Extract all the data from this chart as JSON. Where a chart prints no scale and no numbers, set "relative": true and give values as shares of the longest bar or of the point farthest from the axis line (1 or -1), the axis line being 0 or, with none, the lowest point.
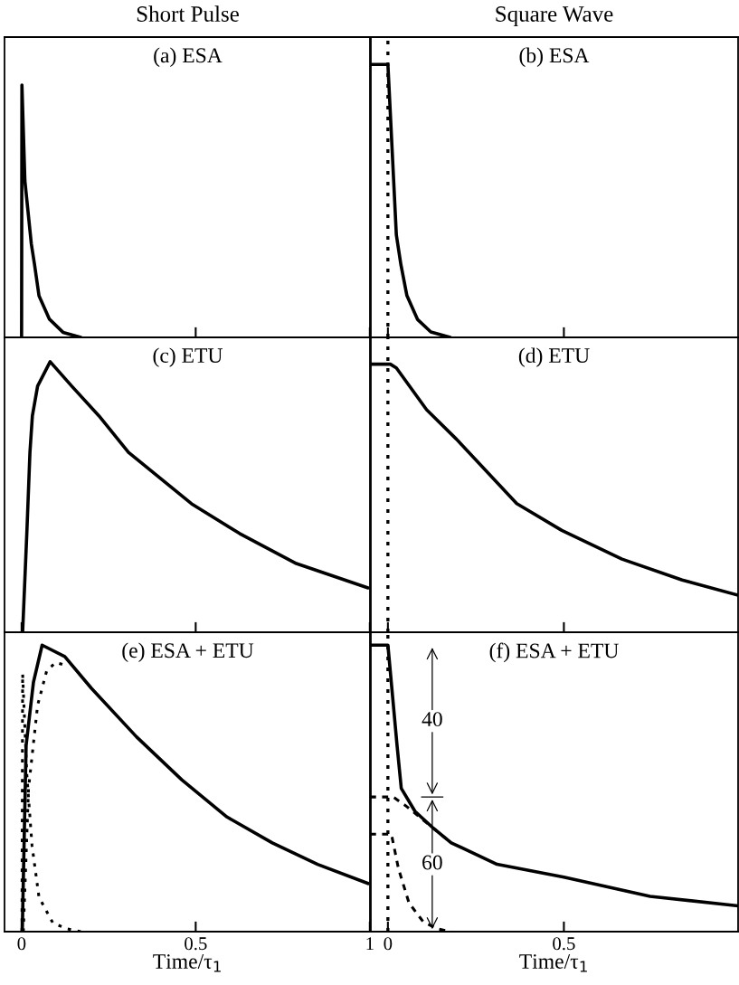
{
  "chart_data": [
    {
      "type": "line",
      "title": "(a) ESA",
      "annotations": [
        "Short Pulse"
      ],
      "relative": true,
      "xlim": [
        -0.049,
        1.003
      ],
      "xticks": [
        0,
        0.5,
        1
      ],
      "tick_labels": false,
      "series": [
        {
          "color": "#000000",
          "line_style": "solid",
          "x": [
            0,
            0.001,
            0.0095,
            0.028,
            0.037,
            0.05,
            0.08,
            0.119,
            0.17
          ],
          "values": [
            0,
            1,
            0.62,
            0.37,
            0.29,
            0.165,
            0.072,
            0.02,
            0
          ]
        }
      ]
    },
    {
      "type": "line",
      "title": "(b) ESA",
      "annotations": [
        "Square Wave"
      ],
      "relative": true,
      "xlim": [
        -0.051,
        0.995
      ],
      "xticks": [
        0,
        0.5
      ],
      "tick_labels": false,
      "ref_lines": [
        {
          "axis": "x",
          "value": 0,
          "label": null,
          "color": "#000000",
          "line_style": "dotted"
        }
      ],
      "series": [
        {
          "color": "#000000",
          "line_style": "solid",
          "x": [
            -0.051,
            0,
            0.024,
            0.037,
            0.054,
            0.084,
            0.122,
            0.177
          ],
          "values": [
            1,
            1,
            0.375,
            0.266,
            0.153,
            0.066,
            0.02,
            0
          ]
        }
      ]
    },
    {
      "type": "line",
      "title": "(c) ETU",
      "relative": true,
      "xlim": [
        -0.049,
        1.003
      ],
      "xticks": [
        0,
        0.5,
        1
      ],
      "tick_labels": false,
      "series": [
        {
          "color": "#000000",
          "line_style": "solid",
          "x": [
            0.003,
            0.015,
            0.024,
            0.031,
            0.046,
            0.082,
            0.144,
            0.222,
            0.307,
            0.488,
            0.626,
            0.789,
            0.995
          ],
          "values": [
            0,
            0.365,
            0.665,
            0.8,
            0.91,
            1,
            0.91,
            0.8,
            0.665,
            0.475,
            0.365,
            0.254,
            0.164
          ]
        }
      ]
    },
    {
      "type": "line",
      "title": "(d) ETU",
      "relative": true,
      "xlim": [
        -0.051,
        0.995
      ],
      "xticks": [
        0,
        0.5
      ],
      "tick_labels": false,
      "ref_lines": [
        {
          "axis": "x",
          "value": 0,
          "label": null,
          "color": "#000000",
          "line_style": "dotted"
        }
      ],
      "series": [
        {
          "color": "#000000",
          "line_style": "solid",
          "x": [
            -0.051,
            0.007,
            0.024,
            0.11,
            0.195,
            0.366,
            0.494,
            0.665,
            0.836,
            0.995
          ],
          "values": [
            1,
            1,
            0.986,
            0.83,
            0.72,
            0.48,
            0.38,
            0.273,
            0.195,
            0.138
          ]
        }
      ]
    },
    {
      "type": "line",
      "title": "(e) ESA + ETU",
      "xlabel": "Time/τ$_{1}$",
      "relative": true,
      "xlim": [
        -0.049,
        1.003
      ],
      "xticks": [
        0,
        0.5,
        1
      ],
      "tick_labels": "x",
      "series": [
        {
          "color": "#000000",
          "line_style": "solid",
          "x": [
            0.002,
            0.013,
            0.034,
            0.059,
            0.124,
            0.2,
            0.33,
            0.46,
            0.59,
            0.72,
            0.85,
            0.995
          ],
          "values": [
            0,
            0.65,
            0.87,
            1,
            0.96,
            0.85,
            0.68,
            0.53,
            0.4,
            0.31,
            0.235,
            0.168
          ]
        },
        {
          "color": "#000000",
          "line_style": "dotted",
          "x": [
            0.005,
            0.02,
            0.046,
            0.072,
            0.098,
            0.124
          ],
          "values": [
            0,
            0.5,
            0.79,
            0.91,
            0.94,
            0.93
          ]
        },
        {
          "color": "#000000",
          "line_style": "dotted",
          "x": [
            0.001,
            0.003,
            0.015,
            0.03,
            0.05,
            0.09,
            0.13,
            0.17
          ],
          "values": [
            0,
            0.9,
            0.55,
            0.3,
            0.12,
            0.03,
            0.01,
            0
          ]
        }
      ]
    },
    {
      "type": "line",
      "title": "(f) ESA + ETU",
      "xlabel": "Time/τ$_{1}$",
      "relative": true,
      "xlim": [
        -0.051,
        0.995
      ],
      "xticks": [
        0,
        0.5
      ],
      "tick_labels": "x",
      "ref_lines": [
        {
          "axis": "x",
          "value": 0,
          "label": null,
          "color": "#000000",
          "line_style": "dotted"
        }
      ],
      "annotations": [
        {
          "text": "60",
          "x": 0.126,
          "y": 0.235
        },
        {
          "text": "40",
          "x": 0.126,
          "y": 0.735
        }
      ],
      "series": [
        {
          "color": "#000000",
          "line_style": "solid",
          "x": [
            -0.051,
            0,
            0.026,
            0.038,
            0.077,
            0.13,
            0.18,
            0.31,
            0.5,
            0.745,
            0.995
          ],
          "values": [
            1,
            1,
            0.65,
            0.5,
            0.42,
            0.36,
            0.31,
            0.235,
            0.19,
            0.123,
            0.09
          ]
        },
        {
          "color": "#000000",
          "line_style": "dashed",
          "x": [
            -0.051,
            0.015,
            0.05,
            0.1,
            0.13,
            0.18
          ],
          "values": [
            0.47,
            0.47,
            0.44,
            0.39,
            0.36,
            0.31
          ]
        },
        {
          "color": "#000000",
          "line_style": "dashed",
          "x": [
            -0.051,
            0.01,
            0.03,
            0.06,
            0.1,
            0.14,
            0.18
          ],
          "values": [
            0.34,
            0.34,
            0.22,
            0.1,
            0.035,
            0.01,
            0
          ]
        }
      ]
    }
  ]
}
